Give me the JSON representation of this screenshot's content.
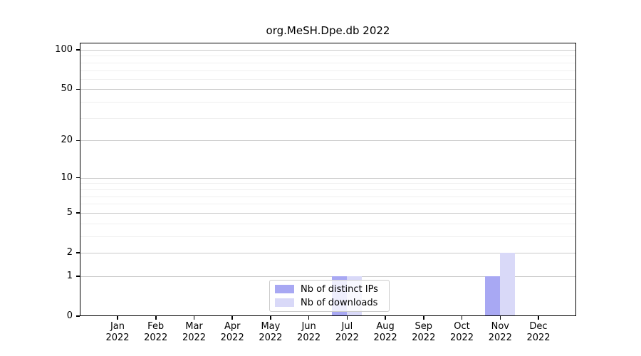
{
  "title": "org.MeSH.Dpe.db 2022",
  "colors": {
    "distinct_ips_bar": "#a8a8f3",
    "downloads_bar": "#d9d9f8",
    "major_gridline": "#c9c9c9",
    "minor_gridline": "#efefef",
    "axis": "#000000",
    "legend_border": "#cccccc"
  },
  "legend": {
    "items": [
      {
        "label": "Nb of distinct IPs",
        "color": "#a8a8f3"
      },
      {
        "label": "Nb of downloads",
        "color": "#d9d9f8"
      }
    ]
  },
  "chart_data": {
    "type": "bar",
    "title": "org.MeSH.Dpe.db 2022",
    "categories": [
      "Jan 2022",
      "Feb 2022",
      "Mar 2022",
      "Apr 2022",
      "May 2022",
      "Jun 2022",
      "Jul 2022",
      "Aug 2022",
      "Sep 2022",
      "Oct 2022",
      "Nov 2022",
      "Dec 2022"
    ],
    "series": [
      {
        "name": "Nb of distinct IPs",
        "color": "#a8a8f3",
        "values": [
          0,
          0,
          0,
          0,
          0,
          0,
          1,
          0,
          0,
          0,
          1,
          0
        ]
      },
      {
        "name": "Nb of downloads",
        "color": "#d9d9f8",
        "values": [
          0,
          0,
          0,
          0,
          0,
          0,
          1,
          0,
          0,
          0,
          2,
          0
        ]
      }
    ],
    "xlabel": "",
    "ylabel": "",
    "yscale": "log1p",
    "ylim": [
      0,
      115
    ],
    "yticks": [
      0,
      1,
      2,
      5,
      10,
      20,
      50,
      100
    ],
    "yticks_minor": [
      3,
      4,
      6,
      7,
      8,
      9,
      30,
      40,
      60,
      70,
      80,
      90
    ],
    "grid": "horizontal-only",
    "legend_position": "inside-bottom-center"
  }
}
